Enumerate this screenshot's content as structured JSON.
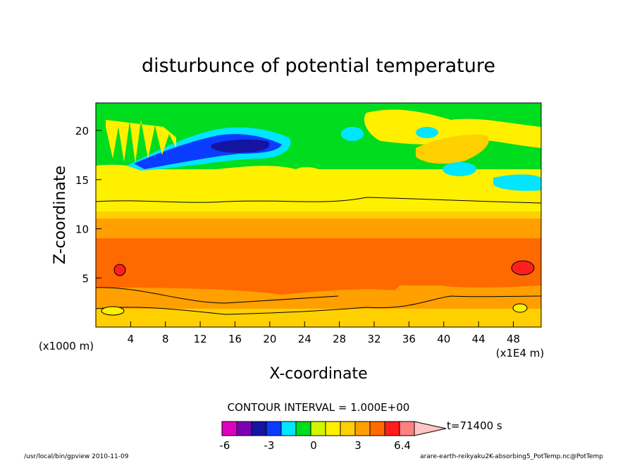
{
  "chart_data": {
    "type": "heatmap",
    "title": "disturbunce of potential temperature",
    "xlabel": "X-coordinate",
    "ylabel": "Z-coordinate",
    "x_unit_label": "(x1E4 m)",
    "y_unit_label": "(x1000 m)",
    "x_ticks": [
      "4",
      "8",
      "12",
      "16",
      "20",
      "24",
      "28",
      "32",
      "36",
      "40",
      "44",
      "48"
    ],
    "y_ticks": [
      "5",
      "10",
      "15",
      "20"
    ],
    "xlim": [
      0,
      51.2
    ],
    "ylim": [
      0,
      22.8
    ],
    "contour_interval_text": "CONTOUR INTERVAL = 1.000E+00",
    "time_label": "t=71400 s",
    "colorbar_labels": [
      "-6",
      "-3",
      "0",
      "3",
      "6.4"
    ],
    "colorbar_colors": [
      "#e000c0",
      "#7a00b4",
      "#1414a0",
      "#0a3cff",
      "#00e6ff",
      "#00dc1e",
      "#d2f500",
      "#fff000",
      "#ffd000",
      "#ffa000",
      "#ff6a00",
      "#ff1e1e",
      "#ff8080",
      "#ffc4c4"
    ],
    "bands": [
      {
        "z": [
          0,
          1.5
        ],
        "color": "#ffd000",
        "level": "1-2"
      },
      {
        "z": [
          1.5,
          4
        ],
        "color": "#ffa000",
        "level": "2-3"
      },
      {
        "z": [
          4,
          8.5
        ],
        "color": "#ff6a00",
        "level": "3-4"
      },
      {
        "z": [
          8.5,
          11
        ],
        "color": "#ffa000",
        "level": "2-3"
      },
      {
        "z": [
          11,
          13
        ],
        "color": "#ffd000",
        "level": "1-2"
      },
      {
        "z": [
          13,
          15.5
        ],
        "color": "#fff000",
        "level": "0-1"
      },
      {
        "z": [
          15.5,
          22.8
        ],
        "color": "#00dc1e",
        "level": "-1-0"
      }
    ],
    "features": [
      {
        "kind": "minimum",
        "x": 16,
        "z": 18,
        "color": "#1414a0",
        "value": "< -5"
      },
      {
        "kind": "maximum",
        "x": 3,
        "z": 5.8,
        "color": "#ff1e1e",
        "value": "> 4"
      },
      {
        "kind": "maximum",
        "x": 49,
        "z": 6,
        "color": "#ff1e1e",
        "value": "> 4"
      }
    ]
  },
  "footer": {
    "left": "/usr/local/bin/gpview  2010-11-09",
    "right": "arare-earth-reikyaku2K-absorbing5_PotTemp.nc@PotTemp"
  }
}
